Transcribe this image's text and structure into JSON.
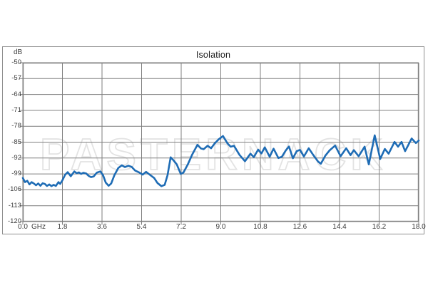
{
  "chart": {
    "title": "Isolation",
    "y_axis_unit": "dB",
    "x_axis_unit": "GHz",
    "watermark": "PASTERNACK",
    "colors": {
      "line": "#1e6cb5",
      "grid": "#7f7f7f",
      "frame": "#8f8f8f",
      "text": "#3d3d3d",
      "watermark": "#e3e3e3"
    }
  },
  "chart_data": {
    "type": "line",
    "title": "Isolation",
    "xlabel": "GHz",
    "ylabel": "dB",
    "xlim": [
      0,
      18
    ],
    "ylim": [
      -120,
      -50
    ],
    "grid": true,
    "legend": false,
    "x_ticks": [
      0,
      1.8,
      3.6,
      5.4,
      7.2,
      9.0,
      10.8,
      12.6,
      14.4,
      16.2,
      18.0
    ],
    "x_tick_labels": [
      "0.0",
      "1.8",
      "3.6",
      "5.4",
      "7.2",
      "9.0",
      "10.8",
      "12.6",
      "14.4",
      "16.2",
      "18.0"
    ],
    "y_ticks": [
      -50,
      -57,
      -64,
      -71,
      -78,
      -85,
      -92,
      -99,
      -106,
      -113,
      -120
    ],
    "y_tick_labels": [
      "-50",
      "-57",
      "-64",
      "-71",
      "-78",
      "-85",
      "-92",
      "-99",
      "-106",
      "-113",
      "-120"
    ],
    "series": [
      {
        "name": "Isolation",
        "color": "#1e6cb5",
        "points": [
          [
            0.0,
            -100.8
          ],
          [
            0.1,
            -102.6
          ],
          [
            0.2,
            -102.0
          ],
          [
            0.3,
            -103.6
          ],
          [
            0.4,
            -102.6
          ],
          [
            0.5,
            -103.2
          ],
          [
            0.6,
            -104.0
          ],
          [
            0.7,
            -103.2
          ],
          [
            0.8,
            -104.2
          ],
          [
            0.9,
            -103.1
          ],
          [
            1.0,
            -103.4
          ],
          [
            1.1,
            -104.3
          ],
          [
            1.2,
            -103.6
          ],
          [
            1.3,
            -104.4
          ],
          [
            1.4,
            -103.8
          ],
          [
            1.5,
            -104.3
          ],
          [
            1.62,
            -102.6
          ],
          [
            1.7,
            -103.4
          ],
          [
            1.8,
            -101.8
          ],
          [
            1.92,
            -99.4
          ],
          [
            2.04,
            -98.2
          ],
          [
            2.18,
            -100.0
          ],
          [
            2.34,
            -97.9
          ],
          [
            2.45,
            -98.7
          ],
          [
            2.55,
            -98.3
          ],
          [
            2.65,
            -99.0
          ],
          [
            2.75,
            -98.5
          ],
          [
            2.88,
            -98.8
          ],
          [
            3.0,
            -99.9
          ],
          [
            3.1,
            -100.4
          ],
          [
            3.22,
            -100.1
          ],
          [
            3.37,
            -98.4
          ],
          [
            3.53,
            -97.9
          ],
          [
            3.65,
            -99.6
          ],
          [
            3.77,
            -102.8
          ],
          [
            3.9,
            -104.2
          ],
          [
            4.02,
            -103.2
          ],
          [
            4.16,
            -99.6
          ],
          [
            4.34,
            -96.4
          ],
          [
            4.5,
            -95.2
          ],
          [
            4.64,
            -96.0
          ],
          [
            4.8,
            -95.4
          ],
          [
            4.95,
            -95.9
          ],
          [
            5.1,
            -97.5
          ],
          [
            5.3,
            -98.4
          ],
          [
            5.45,
            -99.3
          ],
          [
            5.6,
            -98.1
          ],
          [
            5.78,
            -99.4
          ],
          [
            5.97,
            -100.8
          ],
          [
            6.12,
            -103.0
          ],
          [
            6.3,
            -104.4
          ],
          [
            6.45,
            -103.8
          ],
          [
            6.58,
            -99.5
          ],
          [
            6.72,
            -91.7
          ],
          [
            6.85,
            -93.0
          ],
          [
            7.0,
            -94.8
          ],
          [
            7.18,
            -99.0
          ],
          [
            7.3,
            -98.4
          ],
          [
            7.5,
            -94.8
          ],
          [
            7.7,
            -90.5
          ],
          [
            7.94,
            -86.2
          ],
          [
            8.1,
            -87.8
          ],
          [
            8.22,
            -88.1
          ],
          [
            8.4,
            -86.6
          ],
          [
            8.56,
            -87.7
          ],
          [
            8.72,
            -85.6
          ],
          [
            8.9,
            -83.8
          ],
          [
            9.1,
            -82.3
          ],
          [
            9.3,
            -85.5
          ],
          [
            9.45,
            -87.0
          ],
          [
            9.6,
            -86.6
          ],
          [
            9.85,
            -90.6
          ],
          [
            10.1,
            -93.4
          ],
          [
            10.35,
            -90.1
          ],
          [
            10.5,
            -91.6
          ],
          [
            10.7,
            -88.3
          ],
          [
            10.85,
            -90.0
          ],
          [
            11.0,
            -87.3
          ],
          [
            11.22,
            -91.4
          ],
          [
            11.4,
            -87.9
          ],
          [
            11.62,
            -92.0
          ],
          [
            11.78,
            -91.4
          ],
          [
            11.95,
            -88.7
          ],
          [
            12.1,
            -86.9
          ],
          [
            12.28,
            -92.1
          ],
          [
            12.45,
            -89.0
          ],
          [
            12.6,
            -88.4
          ],
          [
            12.78,
            -91.3
          ],
          [
            13.0,
            -87.7
          ],
          [
            13.2,
            -90.6
          ],
          [
            13.42,
            -93.5
          ],
          [
            13.55,
            -94.5
          ],
          [
            13.75,
            -91.0
          ],
          [
            13.95,
            -88.6
          ],
          [
            14.2,
            -86.5
          ],
          [
            14.45,
            -91.2
          ],
          [
            14.7,
            -87.7
          ],
          [
            14.9,
            -90.7
          ],
          [
            15.05,
            -88.5
          ],
          [
            15.27,
            -91.2
          ],
          [
            15.54,
            -87.0
          ],
          [
            15.73,
            -94.8
          ],
          [
            16.0,
            -82.0
          ],
          [
            16.25,
            -92.4
          ],
          [
            16.46,
            -88.0
          ],
          [
            16.63,
            -90.1
          ],
          [
            16.9,
            -84.9
          ],
          [
            17.06,
            -87.0
          ],
          [
            17.22,
            -84.9
          ],
          [
            17.38,
            -89.0
          ],
          [
            17.68,
            -83.4
          ],
          [
            17.87,
            -85.4
          ],
          [
            18.0,
            -84.3
          ]
        ]
      }
    ]
  }
}
